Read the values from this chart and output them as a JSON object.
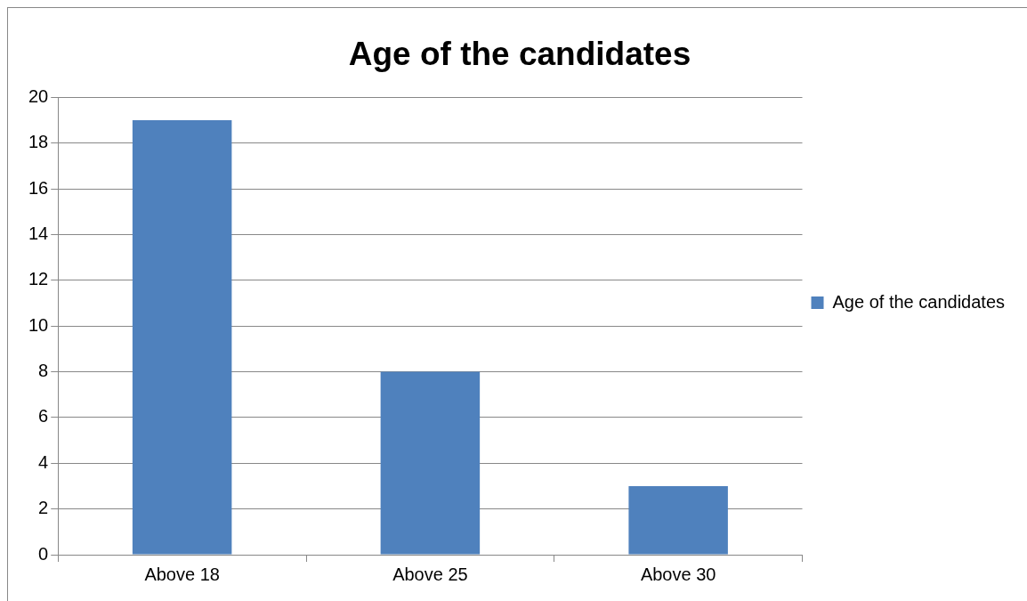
{
  "chart_data": {
    "type": "bar",
    "title": "Age of the candidates",
    "categories": [
      "Above 18",
      "Above 25",
      "Above 30"
    ],
    "series": [
      {
        "name": "Age of the candidates",
        "color": "#4f81bd",
        "values": [
          19,
          8,
          3
        ]
      }
    ],
    "ylim": [
      0,
      20
    ],
    "yticks": [
      0,
      2,
      4,
      6,
      8,
      10,
      12,
      14,
      16,
      18,
      20
    ],
    "grid": "y",
    "legend": "right"
  }
}
